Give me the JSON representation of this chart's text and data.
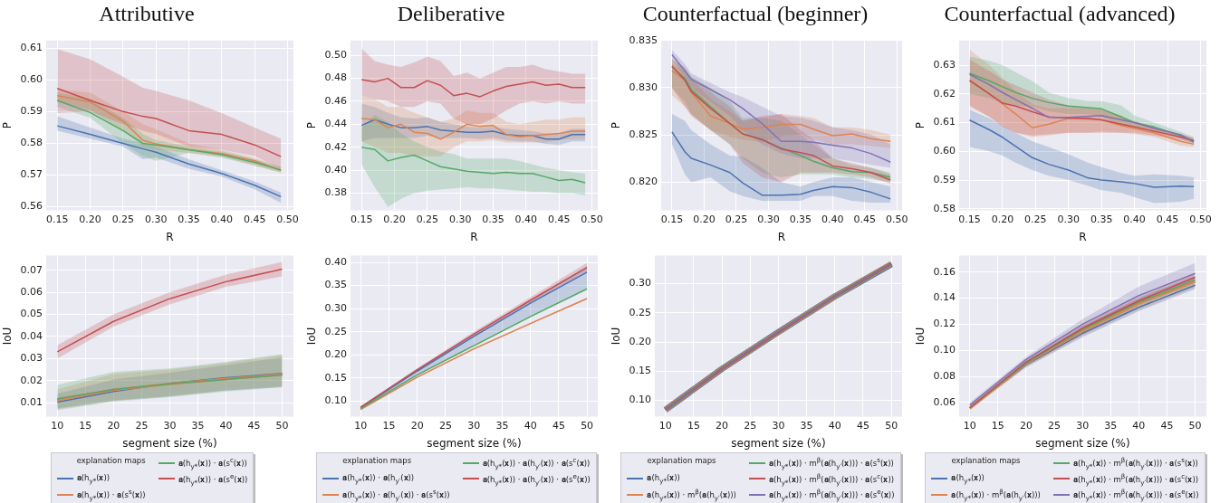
{
  "chart_data": [
    {
      "type": "line",
      "title": "Attributive",
      "xlabel": "R",
      "ylabel": "P",
      "x": [
        0.15,
        0.2,
        0.25,
        0.28,
        0.3,
        0.35,
        0.4,
        0.45,
        0.49
      ],
      "xlim": [
        0.133,
        0.509
      ],
      "ylim": [
        0.5589,
        0.6124
      ],
      "xticks": [
        0.15,
        {
          "value": 0.2,
          "label": "0.20"
        },
        0.25,
        {
          "value": 0.3,
          "label": "0.30"
        },
        0.35,
        {
          "value": 0.4,
          "label": "0.40"
        },
        0.45,
        {
          "value": 0.5,
          "label": "0.50"
        }
      ],
      "yticks": [
        0.56,
        0.57,
        0.58,
        0.59,
        {
          "value": 0.6,
          "label": "0.60"
        },
        0.61
      ],
      "grid": true,
      "series": [
        {
          "color": "#4c72b0",
          "values": [
            0.5855,
            0.5828,
            0.58,
            0.5783,
            0.5772,
            0.5735,
            0.5705,
            0.5668,
            0.5632
          ],
          "lower": [
            0.584,
            0.5815,
            0.579,
            0.575,
            0.5755,
            0.572,
            0.5695,
            0.5655,
            0.5612
          ],
          "upper": [
            0.5885,
            0.585,
            0.5815,
            0.58,
            0.579,
            0.575,
            0.5715,
            0.568,
            0.5645
          ]
        },
        {
          "color": "#dd8452",
          "values": [
            0.595,
            0.593,
            0.587,
            0.581,
            0.5798,
            0.578,
            0.5768,
            0.5745,
            0.5715
          ],
          "lower": [
            0.593,
            0.5905,
            0.584,
            0.579,
            0.578,
            0.577,
            0.5758,
            0.573,
            0.5708
          ],
          "upper": [
            0.597,
            0.596,
            0.59,
            0.586,
            0.5845,
            0.58,
            0.578,
            0.5755,
            0.5725
          ]
        },
        {
          "color": "#55a868",
          "values": [
            0.5935,
            0.5897,
            0.584,
            0.58,
            0.5795,
            0.578,
            0.5764,
            0.574,
            0.5716
          ],
          "lower": [
            0.5915,
            0.588,
            0.58,
            0.576,
            0.5745,
            0.577,
            0.5755,
            0.573,
            0.5708
          ],
          "upper": [
            0.596,
            0.594,
            0.588,
            0.583,
            0.581,
            0.579,
            0.5775,
            0.575,
            0.5725
          ]
        },
        {
          "color": "#c44e52",
          "values": [
            0.5973,
            0.5935,
            0.59,
            0.5885,
            0.5878,
            0.584,
            0.5828,
            0.5795,
            0.5758
          ],
          "lower": [
            0.5895,
            0.59,
            0.586,
            0.584,
            0.583,
            0.579,
            0.578,
            0.576,
            0.572
          ],
          "upper": [
            0.6097,
            0.6065,
            0.601,
            0.5975,
            0.5965,
            0.5935,
            0.5895,
            0.585,
            0.5815
          ]
        }
      ]
    },
    {
      "type": "line",
      "title": "Deliberative",
      "xlabel": "R",
      "ylabel": "P",
      "x": [
        0.15,
        0.17,
        0.19,
        0.21,
        0.23,
        0.25,
        0.27,
        0.29,
        0.31,
        0.33,
        0.35,
        0.37,
        0.39,
        0.41,
        0.43,
        0.45,
        0.47,
        0.49
      ],
      "xlim": [
        0.133,
        0.509
      ],
      "ylim": [
        0.365,
        0.513
      ],
      "xticks": [
        0.15,
        {
          "value": 0.2,
          "label": "0.20"
        },
        0.25,
        {
          "value": 0.3,
          "label": "0.30"
        },
        0.35,
        {
          "value": 0.4,
          "label": "0.40"
        },
        0.45,
        {
          "value": 0.5,
          "label": "0.50"
        }
      ],
      "yticks": [
        0.38,
        {
          "value": 0.4,
          "label": "0.40"
        },
        0.42,
        0.44,
        0.46,
        0.48,
        {
          "value": 0.5,
          "label": "0.50"
        }
      ],
      "grid": true,
      "series": [
        {
          "color": "#4c72b0",
          "values": [
            0.439,
            0.444,
            0.44,
            0.437,
            0.437,
            0.438,
            0.435,
            0.434,
            0.433,
            0.433,
            0.434,
            0.431,
            0.43,
            0.43,
            0.427,
            0.427,
            0.431,
            0.431
          ],
          "lower": [
            0.425,
            0.428,
            0.428,
            0.428,
            0.428,
            0.43,
            0.428,
            0.428,
            0.428,
            0.427,
            0.428,
            0.426,
            0.425,
            0.425,
            0.423,
            0.422,
            0.425,
            0.425
          ],
          "upper": [
            0.458,
            0.455,
            0.45,
            0.446,
            0.445,
            0.446,
            0.442,
            0.44,
            0.438,
            0.437,
            0.438,
            0.436,
            0.435,
            0.434,
            0.432,
            0.432,
            0.436,
            0.436
          ]
        },
        {
          "color": "#dd8452",
          "values": [
            0.445,
            0.444,
            0.437,
            0.44,
            0.433,
            0.432,
            0.427,
            0.433,
            0.44,
            0.438,
            0.439,
            0.431,
            0.429,
            0.43,
            0.431,
            0.432,
            0.434,
            0.434
          ],
          "lower": [
            0.425,
            0.42,
            0.415,
            0.415,
            0.412,
            0.412,
            0.412,
            0.42,
            0.425,
            0.425,
            0.426,
            0.424,
            0.424,
            0.424,
            0.424,
            0.426,
            0.427,
            0.427
          ],
          "upper": [
            0.465,
            0.462,
            0.455,
            0.455,
            0.45,
            0.446,
            0.442,
            0.445,
            0.452,
            0.45,
            0.45,
            0.442,
            0.44,
            0.442,
            0.444,
            0.444,
            0.446,
            0.446
          ]
        },
        {
          "color": "#55a868",
          "values": [
            0.42,
            0.418,
            0.408,
            0.411,
            0.413,
            0.408,
            0.403,
            0.401,
            0.399,
            0.398,
            0.397,
            0.398,
            0.397,
            0.397,
            0.394,
            0.391,
            0.392,
            0.389
          ],
          "lower": [
            0.405,
            0.385,
            0.368,
            0.375,
            0.38,
            0.382,
            0.383,
            0.384,
            0.385,
            0.384,
            0.384,
            0.383,
            0.382,
            0.381,
            0.381,
            0.38,
            0.38,
            0.378
          ],
          "upper": [
            0.437,
            0.448,
            0.442,
            0.432,
            0.425,
            0.42,
            0.416,
            0.414,
            0.41,
            0.41,
            0.41,
            0.41,
            0.408,
            0.405,
            0.402,
            0.4,
            0.398,
            0.397
          ]
        },
        {
          "color": "#c44e52",
          "values": [
            0.479,
            0.477,
            0.48,
            0.472,
            0.472,
            0.478,
            0.474,
            0.465,
            0.467,
            0.464,
            0.469,
            0.473,
            0.475,
            0.477,
            0.474,
            0.475,
            0.472,
            0.472
          ],
          "lower": [
            0.465,
            0.462,
            0.46,
            0.455,
            0.455,
            0.46,
            0.458,
            0.445,
            0.44,
            0.44,
            0.445,
            0.452,
            0.458,
            0.46,
            0.458,
            0.46,
            0.458,
            0.458
          ],
          "upper": [
            0.506,
            0.495,
            0.492,
            0.49,
            0.494,
            0.499,
            0.495,
            0.482,
            0.485,
            0.48,
            0.485,
            0.49,
            0.49,
            0.492,
            0.488,
            0.486,
            0.484,
            0.484
          ]
        }
      ]
    },
    {
      "type": "line",
      "title": "Counterfactual (beginner)",
      "xlabel": "R",
      "ylabel": "P",
      "x": [
        0.15,
        0.17,
        0.18,
        0.21,
        0.24,
        0.26,
        0.29,
        0.32,
        0.35,
        0.37,
        0.4,
        0.43,
        0.46,
        0.49
      ],
      "xlim": [
        0.133,
        0.508
      ],
      "ylim": [
        0.817,
        0.835
      ],
      "xticks": [
        0.15,
        {
          "value": 0.2,
          "label": "0.20"
        },
        0.25,
        {
          "value": 0.3,
          "label": "0.30"
        },
        0.35,
        {
          "value": 0.4,
          "label": "0.40"
        },
        0.45,
        {
          "value": 0.5,
          "label": "0.50"
        }
      ],
      "yticks": [
        {
          "value": 0.82,
          "label": "0.820"
        },
        0.825,
        {
          "value": 0.83,
          "label": "0.830"
        },
        0.835
      ],
      "grid": true,
      "series": [
        {
          "color": "#4c72b0",
          "values": [
            0.8253,
            0.8232,
            0.8225,
            0.8218,
            0.821,
            0.8199,
            0.8186,
            0.8186,
            0.8187,
            0.8191,
            0.8195,
            0.8194,
            0.8189,
            0.8182
          ],
          "lower": [
            0.824,
            0.8208,
            0.82,
            0.8205,
            0.819,
            0.8185,
            0.818,
            0.818,
            0.818,
            0.8185,
            0.8185,
            0.818,
            0.8178,
            0.8178
          ],
          "upper": [
            0.8272,
            0.8265,
            0.8255,
            0.824,
            0.8228,
            0.8227,
            0.8215,
            0.82,
            0.8195,
            0.82,
            0.8205,
            0.8205,
            0.82,
            0.8195
          ]
        },
        {
          "color": "#dd8452",
          "values": [
            0.8318,
            0.8308,
            0.8295,
            0.827,
            0.8262,
            0.8256,
            0.8258,
            0.8261,
            0.8261,
            0.8256,
            0.8249,
            0.8251,
            0.8246,
            0.8243
          ],
          "lower": [
            0.8292,
            0.828,
            0.8272,
            0.8255,
            0.8248,
            0.8245,
            0.8242,
            0.8248,
            0.825,
            0.8245,
            0.824,
            0.824,
            0.8238,
            0.8236
          ],
          "upper": [
            0.8325,
            0.8318,
            0.831,
            0.8288,
            0.8275,
            0.8265,
            0.8268,
            0.8272,
            0.827,
            0.8268,
            0.8258,
            0.8258,
            0.8255,
            0.825
          ]
        },
        {
          "color": "#55a868",
          "values": [
            0.8322,
            0.831,
            0.8298,
            0.828,
            0.8262,
            0.8251,
            0.8245,
            0.8236,
            0.8228,
            0.8222,
            0.8215,
            0.8211,
            0.821,
            0.8205
          ],
          "lower": [
            0.83,
            0.8285,
            0.8272,
            0.8255,
            0.824,
            0.8225,
            0.821,
            0.8205,
            0.8208,
            0.8208,
            0.8208,
            0.8205,
            0.8203,
            0.82
          ],
          "upper": [
            0.833,
            0.8322,
            0.8312,
            0.83,
            0.8285,
            0.8268,
            0.8268,
            0.8265,
            0.825,
            0.824,
            0.8225,
            0.8218,
            0.8215,
            0.821
          ]
        },
        {
          "color": "#c44e52",
          "values": [
            0.8323,
            0.8308,
            0.8296,
            0.8278,
            0.8262,
            0.8251,
            0.8245,
            0.8235,
            0.8231,
            0.8228,
            0.8217,
            0.8214,
            0.821,
            0.8202
          ],
          "lower": [
            0.83,
            0.828,
            0.827,
            0.8255,
            0.824,
            0.822,
            0.8205,
            0.82,
            0.821,
            0.821,
            0.821,
            0.8208,
            0.8205,
            0.8198
          ],
          "upper": [
            0.833,
            0.832,
            0.831,
            0.8295,
            0.828,
            0.8265,
            0.827,
            0.8272,
            0.8255,
            0.8245,
            0.8225,
            0.822,
            0.8215,
            0.8208
          ]
        },
        {
          "color": "#8172b3",
          "values": [
            0.8335,
            0.8318,
            0.8309,
            0.8298,
            0.8287,
            0.8278,
            0.8262,
            0.8243,
            0.8243,
            0.8242,
            0.8239,
            0.8236,
            0.823,
            0.8221
          ],
          "lower": [
            0.833,
            0.8312,
            0.83,
            0.8285,
            0.827,
            0.8255,
            0.824,
            0.823,
            0.8225,
            0.8225,
            0.8225,
            0.8222,
            0.8218,
            0.8215
          ],
          "upper": [
            0.834,
            0.8325,
            0.8315,
            0.8305,
            0.8295,
            0.829,
            0.828,
            0.827,
            0.8268,
            0.8265,
            0.8258,
            0.8255,
            0.825,
            0.824
          ]
        }
      ]
    },
    {
      "type": "line",
      "title": "Counterfactual (advanced)",
      "xlabel": "R",
      "ylabel": "P",
      "x": [
        0.15,
        0.18,
        0.2,
        0.22,
        0.245,
        0.27,
        0.3,
        0.33,
        0.35,
        0.38,
        0.4,
        0.43,
        0.47,
        0.49
      ],
      "xlim": [
        0.134,
        0.509
      ],
      "ylim": [
        0.5795,
        0.6386
      ],
      "xticks": [
        0.15,
        {
          "value": 0.2,
          "label": "0.20"
        },
        0.25,
        {
          "value": 0.3,
          "label": "0.30"
        },
        0.35,
        {
          "value": 0.4,
          "label": "0.40"
        },
        0.45,
        {
          "value": 0.5,
          "label": "0.50"
        }
      ],
      "yticks": [
        0.58,
        0.59,
        {
          "value": 0.6,
          "label": "0.60"
        },
        0.61,
        0.62,
        0.63
      ],
      "grid": true,
      "series": [
        {
          "color": "#4c72b0",
          "values": [
            0.6109,
            0.6075,
            0.6049,
            0.6017,
            0.5978,
            0.5955,
            0.5935,
            0.5907,
            0.59,
            0.5894,
            0.5888,
            0.5875,
            0.5879,
            0.5877
          ],
          "lower": [
            0.6015,
            0.6,
            0.5985,
            0.596,
            0.5935,
            0.5915,
            0.59,
            0.588,
            0.5865,
            0.5855,
            0.584,
            0.582,
            0.5825,
            0.5835
          ],
          "upper": [
            0.6145,
            0.6115,
            0.609,
            0.6065,
            0.6035,
            0.6015,
            0.599,
            0.596,
            0.5945,
            0.5925,
            0.5915,
            0.592,
            0.5915,
            0.591
          ]
        },
        {
          "color": "#dd8452",
          "values": [
            0.6245,
            0.62,
            0.6165,
            0.613,
            0.6082,
            0.6095,
            0.6115,
            0.6112,
            0.611,
            0.609,
            0.608,
            0.6065,
            0.6035,
            0.6025
          ],
          "lower": [
            0.6155,
            0.612,
            0.609,
            0.6065,
            0.605,
            0.6055,
            0.6065,
            0.6065,
            0.607,
            0.6065,
            0.606,
            0.605,
            0.602,
            0.6015
          ],
          "upper": [
            0.6355,
            0.63,
            0.6255,
            0.621,
            0.6165,
            0.615,
            0.615,
            0.615,
            0.615,
            0.6125,
            0.61,
            0.608,
            0.606,
            0.6045
          ]
        },
        {
          "color": "#55a868",
          "values": [
            0.6272,
            0.6245,
            0.6225,
            0.6205,
            0.6185,
            0.617,
            0.6158,
            0.6152,
            0.6148,
            0.612,
            0.61,
            0.6085,
            0.6055,
            0.6035
          ],
          "lower": [
            0.62,
            0.6185,
            0.617,
            0.616,
            0.6155,
            0.614,
            0.613,
            0.613,
            0.612,
            0.609,
            0.6085,
            0.6075,
            0.6045,
            0.6025
          ],
          "upper": [
            0.633,
            0.6315,
            0.63,
            0.6275,
            0.6245,
            0.6205,
            0.6185,
            0.6175,
            0.6175,
            0.616,
            0.6125,
            0.61,
            0.6068,
            0.605
          ]
        },
        {
          "color": "#c44e52",
          "values": [
            0.6248,
            0.62,
            0.6168,
            0.6158,
            0.6138,
            0.612,
            0.6116,
            0.6115,
            0.611,
            0.6095,
            0.6085,
            0.607,
            0.605,
            0.6037
          ],
          "lower": [
            0.616,
            0.612,
            0.6085,
            0.6065,
            0.6055,
            0.606,
            0.6065,
            0.6065,
            0.6065,
            0.6065,
            0.6065,
            0.6055,
            0.604,
            0.603
          ],
          "upper": [
            0.632,
            0.628,
            0.625,
            0.623,
            0.6205,
            0.618,
            0.616,
            0.615,
            0.6145,
            0.612,
            0.6105,
            0.6085,
            0.606,
            0.6045
          ]
        },
        {
          "color": "#8172b3",
          "values": [
            0.6268,
            0.6232,
            0.6205,
            0.618,
            0.615,
            0.6118,
            0.6118,
            0.6122,
            0.6125,
            0.611,
            0.61,
            0.608,
            0.6058,
            0.6032
          ]
        }
      ]
    },
    {
      "type": "line",
      "xlabel": "segment size (%)",
      "ylabel": "IoU",
      "x": [
        10,
        20,
        30,
        40,
        50
      ],
      "xlim": [
        8,
        52
      ],
      "ylim": [
        0.0037,
        0.0766
      ],
      "xticks": [
        10,
        15,
        20,
        25,
        30,
        35,
        40,
        45,
        50
      ],
      "yticks": [
        0.01,
        0.02,
        0.03,
        0.04,
        0.05,
        0.06,
        0.07
      ],
      "grid": true,
      "legend": "bottom",
      "legend_title": "explanation maps",
      "series": [
        {
          "name": "𝐚(h$_{y*}$(𝐱))",
          "color": "#4c72b0",
          "values": [
            0.0102,
            0.015,
            0.0187,
            0.0213,
            0.0232
          ],
          "lower": [
            0.0075,
            0.0108,
            0.0128,
            0.0155,
            0.017
          ],
          "upper": [
            0.014,
            0.0205,
            0.0235,
            0.027,
            0.0305
          ]
        },
        {
          "name": "𝐚(h$_{y*}$(𝐱)) · 𝐚(s$^{s}$(𝐱))",
          "color": "#dd8452",
          "values": [
            0.0112,
            0.0158,
            0.0185,
            0.0207,
            0.0228
          ],
          "lower": [
            0.007,
            0.011,
            0.013,
            0.0155,
            0.0175
          ],
          "upper": [
            0.016,
            0.023,
            0.025,
            0.028,
            0.0315
          ]
        },
        {
          "name": "𝐚(h$_{y*}$(𝐱)) · 𝐚(s$^{c}$(𝐱))",
          "color": "#55a868",
          "values": [
            0.0118,
            0.016,
            0.0185,
            0.0205,
            0.0225
          ],
          "lower": [
            0.0065,
            0.0105,
            0.0125,
            0.015,
            0.017
          ],
          "upper": [
            0.018,
            0.024,
            0.0255,
            0.0285,
            0.032
          ]
        },
        {
          "name": "𝐚(h$_{y*}$(𝐱)) · 𝐚(s$^{e}$(𝐱))",
          "color": "#c44e52",
          "values": [
            0.033,
            0.0468,
            0.0571,
            0.0648,
            0.0705
          ],
          "lower": [
            0.03,
            0.0445,
            0.0545,
            0.0625,
            0.0672
          ],
          "upper": [
            0.036,
            0.05,
            0.06,
            0.068,
            0.0738
          ]
        }
      ]
    },
    {
      "type": "line",
      "xlabel": "segment size (%)",
      "ylabel": "IoU",
      "x": [
        10,
        20,
        30,
        40,
        50
      ],
      "xlim": [
        8.2,
        51.9
      ],
      "ylim": [
        0.0669,
        0.4146
      ],
      "xticks": [
        10,
        15,
        20,
        25,
        30,
        35,
        40,
        45,
        50
      ],
      "yticks": [
        {
          "value": 0.1,
          "label": "0.10"
        },
        0.15,
        {
          "value": 0.2,
          "label": "0.20"
        },
        0.25,
        {
          "value": 0.3,
          "label": "0.30"
        },
        0.35,
        {
          "value": 0.4,
          "label": "0.40"
        }
      ],
      "grid": true,
      "legend": "bottom",
      "legend_title": "explanation maps",
      "series": [
        {
          "name": "𝐚(h$_{y*}$(𝐱)) · 𝐚(h$_{y′}$(𝐱))",
          "color": "#4c72b0",
          "values": [
            0.086,
            0.165,
            0.24,
            0.312,
            0.379
          ],
          "lower": [
            0.084,
            0.158,
            0.222,
            0.285,
            0.345
          ],
          "upper": [
            0.088,
            0.168,
            0.246,
            0.32,
            0.392
          ]
        },
        {
          "name": "𝐚(h$_{y*}$(𝐱)) · 𝐚(h$_{y′}$(𝐱)) · 𝐚(s$^{s}$(𝐱))",
          "color": "#dd8452",
          "values": [
            0.082,
            0.152,
            0.213,
            0.268,
            0.322
          ],
          "lower": [
            0.08,
            0.15,
            0.211,
            0.266,
            0.32
          ],
          "upper": [
            0.084,
            0.154,
            0.215,
            0.27,
            0.324
          ]
        },
        {
          "name": "𝐚(h$_{y*}$(𝐱)) · 𝐚(h$_{y′}$(𝐱)) · 𝐚(s$^{c}$(𝐱))",
          "color": "#55a868",
          "values": [
            0.084,
            0.157,
            0.22,
            0.283,
            0.343
          ],
          "lower": [
            0.082,
            0.155,
            0.218,
            0.281,
            0.341
          ],
          "upper": [
            0.086,
            0.159,
            0.222,
            0.285,
            0.345
          ]
        },
        {
          "name": "𝐚(h$_{y*}$(𝐱)) · 𝐚(h$_{y′}$(𝐱)) · 𝐚(s$^{e}$(𝐱))",
          "color": "#c44e52",
          "values": [
            0.087,
            0.168,
            0.245,
            0.318,
            0.389
          ],
          "lower": [
            0.085,
            0.165,
            0.24,
            0.312,
            0.381
          ],
          "upper": [
            0.089,
            0.171,
            0.25,
            0.325,
            0.399
          ]
        }
      ]
    },
    {
      "type": "line",
      "xlabel": "segment size (%)",
      "ylabel": "IoU",
      "x": [
        10,
        20,
        30,
        40,
        50
      ],
      "xlim": [
        8.1,
        51.9
      ],
      "ylim": [
        0.0725,
        0.3477
      ],
      "xticks": [
        10,
        15,
        20,
        25,
        30,
        35,
        40,
        45,
        50
      ],
      "yticks": [
        {
          "value": 0.1,
          "label": "0.10"
        },
        0.15,
        {
          "value": 0.2,
          "label": "0.20"
        },
        0.25,
        {
          "value": 0.3,
          "label": "0.30"
        }
      ],
      "grid": true,
      "legend": "bottom",
      "legend_title": "explanation maps",
      "series": [
        {
          "name": "𝐚(h$_{y*}$(𝐱))",
          "color": "#4c72b0",
          "values": [
            0.084,
            0.154,
            0.217,
            0.278,
            0.333
          ]
        },
        {
          "name": "𝐚(h$_{y*}$(𝐱)) · m$^{β}$(𝐚(h$_{y′}$(𝐱)))",
          "color": "#dd8452",
          "values": [
            0.084,
            0.154,
            0.217,
            0.278,
            0.334
          ]
        },
        {
          "name": "𝐚(h$_{y*}$(𝐱)) · m$^{β}$(𝐚(h$_{y′}$(𝐱))) · 𝐚(s$^{s}$(𝐱))",
          "color": "#55a868",
          "values": [
            0.084,
            0.154,
            0.217,
            0.278,
            0.334
          ]
        },
        {
          "name": "𝐚(h$_{y*}$(𝐱)) · m$^{β}$(𝐚(h$_{y′}$(𝐱))) · 𝐚(s$^{c}$(𝐱))",
          "color": "#c44e52",
          "values": [
            0.084,
            0.154,
            0.217,
            0.278,
            0.334
          ]
        },
        {
          "name": "𝐚(h$_{y*}$(𝐱)) · m$^{β}$(𝐚(h$_{y′}$(𝐱))) · 𝐚(s$^{e}$(𝐱))",
          "color": "#8172b3",
          "values": [
            0.084,
            0.154,
            0.218,
            0.278,
            0.334
          ]
        }
      ]
    },
    {
      "type": "line",
      "xlabel": "segment size (%)",
      "ylabel": "IoU",
      "x": [
        10,
        20,
        30,
        40,
        50
      ],
      "xlim": [
        8.1,
        52
      ],
      "ylim": [
        0.0493,
        0.1726
      ],
      "xticks": [
        10,
        15,
        20,
        25,
        30,
        35,
        40,
        45,
        50
      ],
      "yticks": [
        0.06,
        0.08,
        {
          "value": 0.1,
          "label": "0.10"
        },
        0.12,
        0.14,
        0.16
      ],
      "grid": true,
      "legend": "bottom",
      "legend_title": "explanation maps",
      "series": [
        {
          "name": "𝐚(h$_{y*}$(𝐱))",
          "color": "#4c72b0",
          "values": [
            0.056,
            0.089,
            0.113,
            0.133,
            0.15
          ],
          "lower": [
            0.055,
            0.087,
            0.11,
            0.13,
            0.147
          ],
          "upper": [
            0.057,
            0.091,
            0.116,
            0.136,
            0.153
          ]
        },
        {
          "name": "𝐚(h$_{y*}$(𝐱)) · m$^{β}$(𝐚(h$_{y′}$(𝐱)))",
          "color": "#dd8452",
          "values": [
            0.0555,
            0.09,
            0.115,
            0.136,
            0.153
          ],
          "lower": [
            0.054,
            0.087,
            0.111,
            0.131,
            0.148
          ],
          "upper": [
            0.057,
            0.092,
            0.118,
            0.14,
            0.157
          ]
        },
        {
          "name": "𝐚(h$_{y*}$(𝐱)) · m$^{β}$(𝐚(h$_{y′}$(𝐱))) · 𝐚(s$^{s}$(𝐱))",
          "color": "#55a868",
          "values": [
            0.056,
            0.09,
            0.116,
            0.137,
            0.154
          ],
          "lower": [
            0.055,
            0.088,
            0.113,
            0.134,
            0.151
          ],
          "upper": [
            0.057,
            0.092,
            0.119,
            0.14,
            0.157
          ]
        },
        {
          "name": "𝐚(h$_{y*}$(𝐱)) · m$^{β}$(𝐚(h$_{y′}$(𝐱))) · 𝐚(s$^{c}$(𝐱))",
          "color": "#c44e52",
          "values": [
            0.056,
            0.091,
            0.117,
            0.138,
            0.156
          ],
          "lower": [
            0.055,
            0.089,
            0.114,
            0.135,
            0.152
          ],
          "upper": [
            0.057,
            0.093,
            0.12,
            0.141,
            0.159
          ]
        },
        {
          "name": "𝐚(h$_{y*}$(𝐱)) · m$^{β}$(𝐚(h$_{y′}$(𝐱))) · 𝐚(s$^{e}$(𝐱))",
          "color": "#8172b3",
          "values": [
            0.058,
            0.093,
            0.12,
            0.142,
            0.159
          ],
          "lower": [
            0.056,
            0.09,
            0.116,
            0.137,
            0.153
          ],
          "upper": [
            0.06,
            0.095,
            0.124,
            0.149,
            0.167
          ]
        }
      ]
    }
  ]
}
